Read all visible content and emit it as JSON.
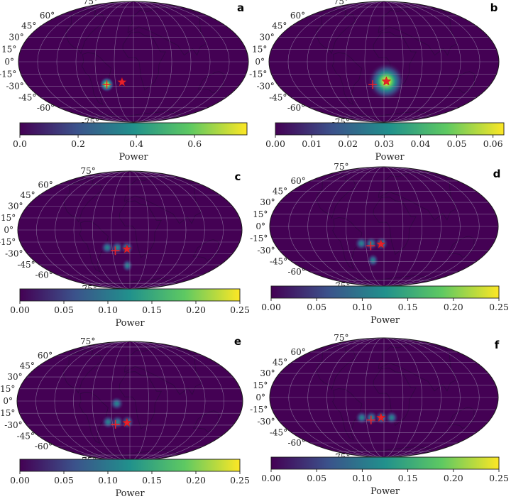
{
  "figure": {
    "lat_labels": [
      "75°",
      "60°",
      "45°",
      "30°",
      "15°",
      "0°",
      "-15°",
      "-30°",
      "-45°",
      "-60°",
      "-75°"
    ],
    "lat_values": [
      75,
      60,
      45,
      30,
      15,
      0,
      -15,
      -30,
      -45,
      -60,
      -75
    ],
    "colormap": [
      "#440154",
      "#3b528b",
      "#21918c",
      "#5ec962",
      "#fde725"
    ],
    "map_background": "#440154",
    "grid_color": "#9d8fb0",
    "marker_color": "#e8202a"
  },
  "chart_data": [
    {
      "panel": "a",
      "type": "heatmap",
      "projection": "mollweide",
      "colorbar": {
        "label": "Power",
        "min": 0.0,
        "max": 0.78,
        "ticks": [
          "0.0",
          "0.2",
          "0.4",
          "0.6"
        ],
        "tick_values": [
          0.0,
          0.2,
          0.4,
          0.6
        ]
      },
      "blobs": [
        {
          "lon": -45,
          "lat": -28,
          "radius_deg": 10,
          "peak": 0.78
        }
      ],
      "markers": [
        {
          "type": "plus",
          "lon": -45,
          "lat": -28
        },
        {
          "type": "star",
          "lon": -19,
          "lat": -25
        }
      ]
    },
    {
      "panel": "b",
      "type": "heatmap",
      "projection": "mollweide",
      "colorbar": {
        "label": "Power",
        "min": 0.0,
        "max": 0.063,
        "ticks": [
          "0.00",
          "0.01",
          "0.02",
          "0.03",
          "0.04",
          "0.05",
          "0.06"
        ],
        "tick_values": [
          0.0,
          0.01,
          0.02,
          0.03,
          0.04,
          0.05,
          0.06
        ]
      },
      "blobs": [
        {
          "lon": 4,
          "lat": -24,
          "radius_deg": 24,
          "peak": 0.063
        }
      ],
      "markers": [
        {
          "type": "plus",
          "lon": -19,
          "lat": -28
        },
        {
          "type": "star",
          "lon": 4,
          "lat": -24
        }
      ]
    },
    {
      "panel": "c",
      "type": "heatmap",
      "projection": "mollweide",
      "colorbar": {
        "label": "Power",
        "min": 0.0,
        "max": 0.25,
        "ticks": [
          "0.00",
          "0.05",
          "0.10",
          "0.15",
          "0.20",
          "0.25"
        ],
        "tick_values": [
          0.0,
          0.05,
          0.1,
          0.15,
          0.2,
          0.25
        ]
      },
      "blobs": [
        {
          "lon": -38,
          "lat": -22,
          "radius_deg": 9,
          "peak": 0.11
        },
        {
          "lon": -21,
          "lat": -22,
          "radius_deg": 9,
          "peak": 0.11
        },
        {
          "lon": -5,
          "lat": -22,
          "radius_deg": 9,
          "peak": 0.11
        },
        {
          "lon": -5,
          "lat": -46,
          "radius_deg": 9,
          "peak": 0.11
        }
      ],
      "markers": [
        {
          "type": "plus",
          "lon": -25,
          "lat": -26
        },
        {
          "type": "star",
          "lon": -5,
          "lat": -24
        }
      ]
    },
    {
      "panel": "d",
      "type": "heatmap",
      "projection": "mollweide",
      "colorbar": {
        "label": "Power",
        "min": 0.0,
        "max": 0.25,
        "ticks": [
          "0.00",
          "0.05",
          "0.10",
          "0.15",
          "0.20",
          "0.25"
        ],
        "tick_values": [
          0.0,
          0.05,
          0.1,
          0.15,
          0.2,
          0.25
        ]
      },
      "blobs": [
        {
          "lon": -37,
          "lat": -21,
          "radius_deg": 9,
          "peak": 0.11
        },
        {
          "lon": -21,
          "lat": -21,
          "radius_deg": 9,
          "peak": 0.11
        },
        {
          "lon": -4,
          "lat": -21,
          "radius_deg": 9,
          "peak": 0.11
        },
        {
          "lon": -21,
          "lat": -43,
          "radius_deg": 9,
          "peak": 0.11
        }
      ],
      "markers": [
        {
          "type": "plus",
          "lon": -22,
          "lat": -24
        },
        {
          "type": "star",
          "lon": -5,
          "lat": -22
        }
      ]
    },
    {
      "panel": "e",
      "type": "heatmap",
      "projection": "mollweide",
      "colorbar": {
        "label": "Power",
        "min": 0.0,
        "max": 0.25,
        "ticks": [
          "0.00",
          "0.05",
          "0.10",
          "0.15",
          "0.20",
          "0.25"
        ],
        "tick_values": [
          0.0,
          0.05,
          0.1,
          0.15,
          0.2,
          0.25
        ]
      },
      "blobs": [
        {
          "lon": -37,
          "lat": -26,
          "radius_deg": 9,
          "peak": 0.11
        },
        {
          "lon": -21,
          "lat": -26,
          "radius_deg": 9,
          "peak": 0.11
        },
        {
          "lon": -4,
          "lat": -26,
          "radius_deg": 9,
          "peak": 0.11
        },
        {
          "lon": -21,
          "lat": -3,
          "radius_deg": 9,
          "peak": 0.11
        }
      ],
      "markers": [
        {
          "type": "plus",
          "lon": -25,
          "lat": -29
        },
        {
          "type": "star",
          "lon": -5,
          "lat": -27
        }
      ]
    },
    {
      "panel": "f",
      "type": "heatmap",
      "projection": "mollweide",
      "colorbar": {
        "label": "Power",
        "min": 0.0,
        "max": 0.25,
        "ticks": [
          "0.00",
          "0.05",
          "0.10",
          "0.15",
          "0.20",
          "0.25"
        ],
        "tick_values": [
          0.0,
          0.05,
          0.1,
          0.15,
          0.2,
          0.25
        ]
      },
      "blobs": [
        {
          "lon": -37,
          "lat": -25,
          "radius_deg": 9,
          "peak": 0.11
        },
        {
          "lon": -21,
          "lat": -25,
          "radius_deg": 9,
          "peak": 0.11
        },
        {
          "lon": -4,
          "lat": -25,
          "radius_deg": 9,
          "peak": 0.11
        },
        {
          "lon": 13,
          "lat": -25,
          "radius_deg": 9,
          "peak": 0.11
        }
      ],
      "markers": [
        {
          "type": "plus",
          "lon": -22,
          "lat": -28
        },
        {
          "type": "star",
          "lon": -5,
          "lat": -25
        }
      ]
    }
  ]
}
